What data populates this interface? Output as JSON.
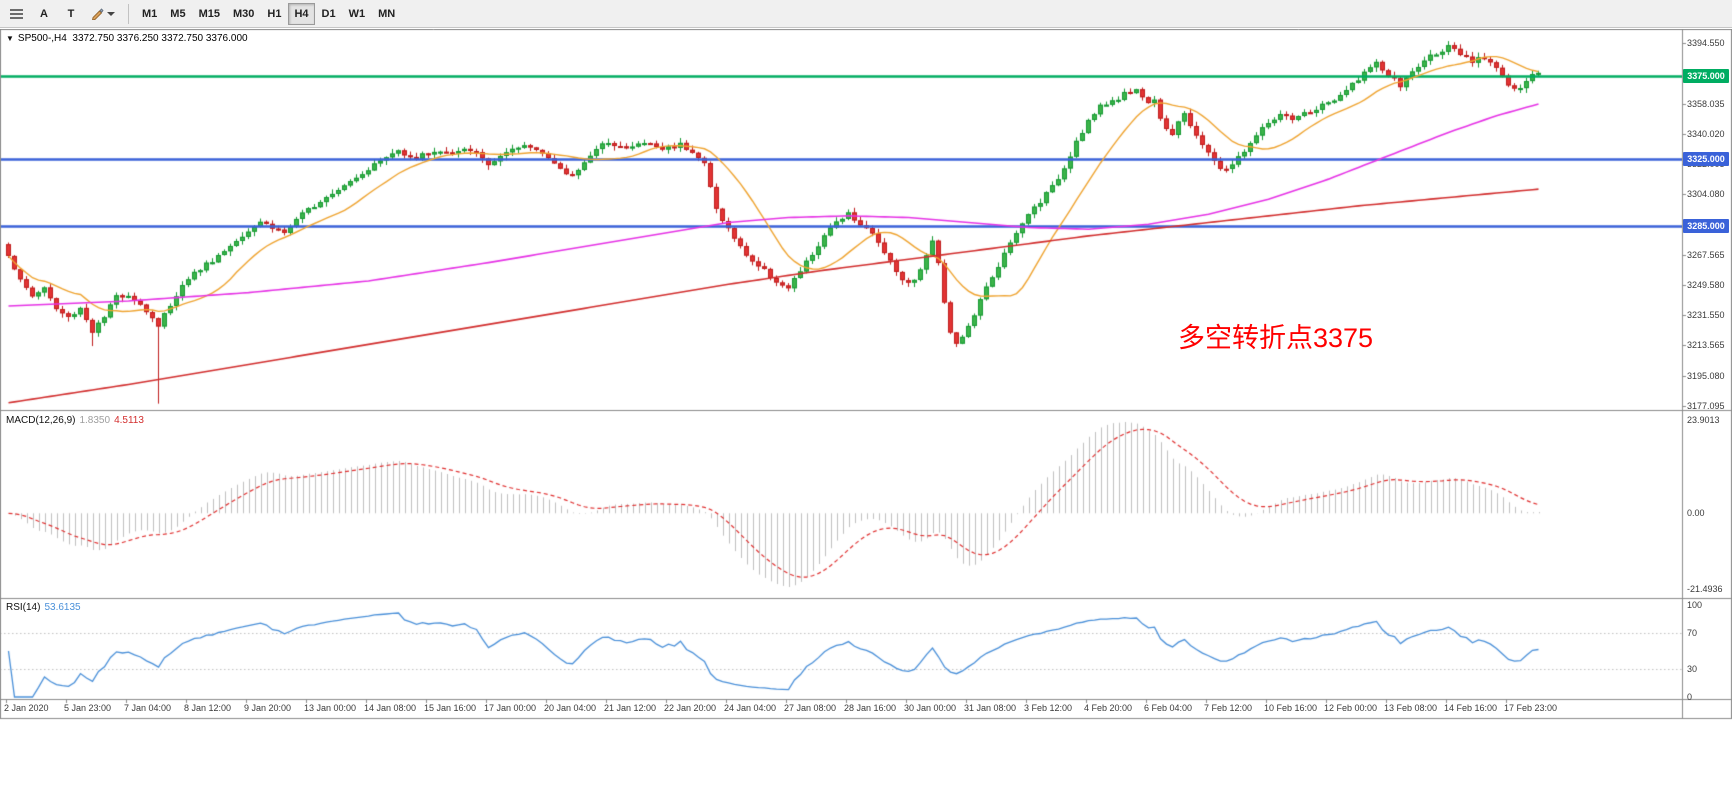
{
  "toolbar": {
    "buttons": {
      "a": "A",
      "t": "T"
    },
    "timeframes": [
      {
        "label": "M1",
        "active": false
      },
      {
        "label": "M5",
        "active": false
      },
      {
        "label": "M15",
        "active": false
      },
      {
        "label": "M30",
        "active": false
      },
      {
        "label": "H1",
        "active": false
      },
      {
        "label": "H4",
        "active": true
      },
      {
        "label": "D1",
        "active": false
      },
      {
        "label": "W1",
        "active": false
      },
      {
        "label": "MN",
        "active": false
      }
    ]
  },
  "chart": {
    "title_symbol": "SP500-,H4",
    "title_ohlc": "3372.750 3376.250 3372.750 3376.000",
    "annotation": {
      "text": "多空转折点3375"
    },
    "levels": [
      {
        "price": 3375.0,
        "label": "3375.000",
        "color": "#00AD62"
      },
      {
        "price": 3325.0,
        "label": "3325.000",
        "color": "#3A62D9"
      },
      {
        "price": 3285.0,
        "label": "3285.000",
        "color": "#3A62D9"
      }
    ],
    "y_axis": {
      "labels": [
        {
          "price": 3394.55,
          "text": "3394.550"
        },
        {
          "price": 3358.035,
          "text": "3358.035"
        },
        {
          "price": 3340.02,
          "text": "3340.020"
        },
        {
          "price": 3322.005,
          "text": "3322.005"
        },
        {
          "price": 3304.08,
          "text": "3304.080"
        },
        {
          "price": 3267.565,
          "text": "3267.565"
        },
        {
          "price": 3249.58,
          "text": "3249.580"
        },
        {
          "price": 3231.55,
          "text": "3231.550"
        },
        {
          "price": 3213.565,
          "text": "3213.565"
        },
        {
          "price": 3195.08,
          "text": "3195.080"
        },
        {
          "price": 3177.095,
          "text": "3177.095"
        }
      ]
    },
    "x_axis": {
      "labels": [
        "2 Jan 2020",
        "5 Jan 23:00",
        "7 Jan 04:00",
        "8 Jan 12:00",
        "9 Jan 20:00",
        "13 Jan 00:00",
        "14 Jan 08:00",
        "15 Jan 16:00",
        "17 Jan 00:00",
        "20 Jan 04:00",
        "21 Jan 12:00",
        "22 Jan 20:00",
        "24 Jan 04:00",
        "27 Jan 08:00",
        "28 Jan 16:00",
        "30 Jan 00:00",
        "31 Jan 08:00",
        "3 Feb 12:00",
        "4 Feb 20:00",
        "6 Feb 04:00",
        "7 Feb 12:00",
        "10 Feb 16:00",
        "12 Feb 00:00",
        "13 Feb 08:00",
        "14 Feb 16:00",
        "17 Feb 23:00"
      ]
    },
    "scale": {
      "min": 3177.095,
      "max": 3394.55
    }
  },
  "series": {
    "type": "candlestick",
    "count": 256,
    "open_start": 3274,
    "close_anchors": [
      [
        0,
        3268
      ],
      [
        2,
        3252
      ],
      [
        4,
        3243
      ],
      [
        6,
        3248
      ],
      [
        8,
        3235
      ],
      [
        10,
        3230
      ],
      [
        12,
        3236
      ],
      [
        14,
        3222
      ],
      [
        16,
        3230
      ],
      [
        18,
        3243
      ],
      [
        20,
        3244
      ],
      [
        22,
        3238
      ],
      [
        24,
        3230
      ],
      [
        25,
        3224
      ],
      [
        26,
        3232
      ],
      [
        28,
        3244
      ],
      [
        30,
        3254
      ],
      [
        33,
        3262
      ],
      [
        36,
        3270
      ],
      [
        39,
        3280
      ],
      [
        42,
        3288
      ],
      [
        44,
        3284
      ],
      [
        46,
        3281
      ],
      [
        48,
        3288
      ],
      [
        50,
        3295
      ],
      [
        53,
        3303
      ],
      [
        56,
        3310
      ],
      [
        59,
        3317
      ],
      [
        62,
        3324
      ],
      [
        65,
        3330
      ],
      [
        68,
        3326
      ],
      [
        71,
        3330
      ],
      [
        74,
        3328
      ],
      [
        77,
        3331
      ],
      [
        80,
        3322
      ],
      [
        83,
        3328
      ],
      [
        86,
        3333
      ],
      [
        89,
        3330
      ],
      [
        92,
        3318
      ],
      [
        94,
        3315
      ],
      [
        96,
        3324
      ],
      [
        98,
        3330
      ],
      [
        100,
        3336
      ],
      [
        103,
        3331
      ],
      [
        106,
        3335
      ],
      [
        109,
        3331
      ],
      [
        112,
        3334
      ],
      [
        114,
        3330
      ],
      [
        116,
        3322
      ],
      [
        117,
        3308
      ],
      [
        118,
        3295
      ],
      [
        120,
        3283
      ],
      [
        122,
        3272
      ],
      [
        124,
        3264
      ],
      [
        126,
        3258
      ],
      [
        128,
        3252
      ],
      [
        130,
        3247
      ],
      [
        132,
        3258
      ],
      [
        134,
        3268
      ],
      [
        136,
        3278
      ],
      [
        138,
        3288
      ],
      [
        140,
        3293
      ],
      [
        142,
        3286
      ],
      [
        144,
        3280
      ],
      [
        146,
        3270
      ],
      [
        148,
        3258
      ],
      [
        150,
        3250
      ],
      [
        152,
        3258
      ],
      [
        153,
        3268
      ],
      [
        154,
        3275
      ],
      [
        155,
        3264
      ],
      [
        156,
        3240
      ],
      [
        157,
        3222
      ],
      [
        158,
        3214
      ],
      [
        160,
        3224
      ],
      [
        162,
        3240
      ],
      [
        164,
        3255
      ],
      [
        166,
        3268
      ],
      [
        168,
        3280
      ],
      [
        170,
        3292
      ],
      [
        172,
        3300
      ],
      [
        174,
        3308
      ],
      [
        176,
        3320
      ],
      [
        178,
        3336
      ],
      [
        180,
        3348
      ],
      [
        182,
        3356
      ],
      [
        184,
        3360
      ],
      [
        186,
        3364
      ],
      [
        188,
        3367
      ],
      [
        190,
        3358
      ],
      [
        191,
        3362
      ],
      [
        192,
        3350
      ],
      [
        193,
        3344
      ],
      [
        194,
        3340
      ],
      [
        195,
        3347
      ],
      [
        196,
        3351
      ],
      [
        197,
        3345
      ],
      [
        198,
        3340
      ],
      [
        199,
        3334
      ],
      [
        200,
        3328
      ],
      [
        201,
        3324
      ],
      [
        202,
        3318
      ],
      [
        204,
        3322
      ],
      [
        206,
        3330
      ],
      [
        208,
        3339
      ],
      [
        210,
        3347
      ],
      [
        212,
        3351
      ],
      [
        214,
        3348
      ],
      [
        216,
        3352
      ],
      [
        218,
        3355
      ],
      [
        220,
        3359
      ],
      [
        222,
        3362
      ],
      [
        224,
        3370
      ],
      [
        226,
        3377
      ],
      [
        228,
        3382
      ],
      [
        230,
        3375
      ],
      [
        232,
        3369
      ],
      [
        234,
        3377
      ],
      [
        236,
        3384
      ],
      [
        238,
        3389
      ],
      [
        240,
        3392
      ],
      [
        242,
        3387
      ],
      [
        244,
        3383
      ],
      [
        246,
        3386
      ],
      [
        248,
        3381
      ],
      [
        250,
        3369
      ],
      [
        252,
        3366
      ],
      [
        253,
        3372
      ],
      [
        254,
        3375
      ],
      [
        255,
        3376
      ]
    ],
    "spikes": {
      "14": 3213,
      "25": 3178.5
    },
    "ma_mid_anchors": [
      [
        0,
        3237
      ],
      [
        20,
        3240
      ],
      [
        40,
        3245
      ],
      [
        60,
        3252
      ],
      [
        80,
        3263
      ],
      [
        95,
        3272
      ],
      [
        110,
        3281
      ],
      [
        120,
        3287
      ],
      [
        130,
        3290
      ],
      [
        140,
        3291
      ],
      [
        150,
        3290
      ],
      [
        160,
        3287
      ],
      [
        170,
        3284
      ],
      [
        180,
        3283
      ],
      [
        190,
        3286
      ],
      [
        200,
        3292
      ],
      [
        210,
        3301
      ],
      [
        220,
        3313
      ],
      [
        230,
        3327
      ],
      [
        240,
        3341
      ],
      [
        248,
        3351
      ],
      [
        255,
        3358
      ]
    ],
    "ma_slow_anchors": [
      [
        0,
        3179
      ],
      [
        20,
        3190
      ],
      [
        40,
        3202
      ],
      [
        60,
        3214
      ],
      [
        80,
        3226
      ],
      [
        100,
        3238
      ],
      [
        120,
        3250
      ],
      [
        135,
        3258
      ],
      [
        150,
        3265
      ],
      [
        165,
        3272
      ],
      [
        180,
        3279
      ],
      [
        195,
        3285
      ],
      [
        210,
        3291
      ],
      [
        225,
        3297
      ],
      [
        240,
        3302
      ],
      [
        255,
        3307
      ]
    ]
  },
  "macd": {
    "label": "MACD(12,26,9)",
    "value_main": "1.8350",
    "value_signal": "4.5113",
    "axis_top": "23.9013",
    "axis_zero": "0.00",
    "axis_bottom": "-21.4936"
  },
  "rsi": {
    "label": "RSI(14)",
    "value": "53.6135",
    "axis": [
      "100",
      "70",
      "30",
      "0"
    ],
    "levels": [
      70,
      30
    ]
  },
  "colors": {
    "candle_up_fill": "#3cb44a",
    "candle_up_stroke": "#169a33",
    "candle_down_fill": "#e23434",
    "candle_down_stroke": "#bf1d1d",
    "ma_fast": "#efa431",
    "ma_mid": "#e633e6",
    "ma_slow": "#d22f2f",
    "macd_hist": "#c0c0c0",
    "macd_signal": "#e03030",
    "rsi_line": "#4a90d9",
    "rsi_level": "#c0c0c0",
    "annotation": "#ff0000",
    "border": "#8a8a8a",
    "axis_text": "#3a3a3a"
  }
}
